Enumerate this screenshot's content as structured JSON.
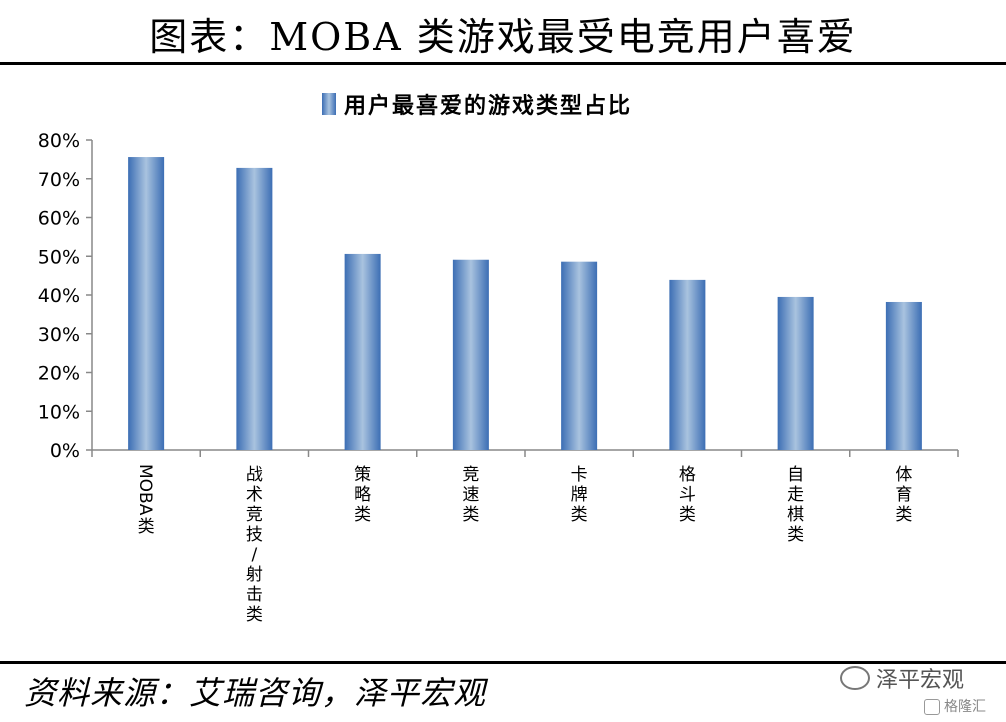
{
  "title": "图表：MOBA 类游戏最受电竞用户喜爱",
  "source": "资料来源：艾瑞咨询，泽平宏观",
  "watermark": {
    "text": "泽平宏观",
    "icon": "wechat-icon"
  },
  "corner_mark": {
    "text": "格隆汇",
    "icon": "gelonghui-icon"
  },
  "chart_data": {
    "type": "bar",
    "legend": "用户最喜爱的游戏类型占比",
    "legend_position": "top",
    "categories": [
      "MOBA类",
      "战术竞技/射击类",
      "策略类",
      "竞速类",
      "卡牌类",
      "格斗类",
      "自走棋类",
      "体育类"
    ],
    "values": [
      75.6,
      72.8,
      50.6,
      49.1,
      48.6,
      43.9,
      39.5,
      38.2
    ],
    "ylim": [
      0,
      80
    ],
    "yticks": [
      0,
      10,
      20,
      30,
      40,
      50,
      60,
      70,
      80
    ],
    "ytick_labels": [
      "0%",
      "10%",
      "20%",
      "30%",
      "40%",
      "50%",
      "60%",
      "70%",
      "80%"
    ],
    "grid": false,
    "colors": {
      "bar_edge": "#3c6eb4",
      "bar_center": "#a9c3df"
    }
  }
}
